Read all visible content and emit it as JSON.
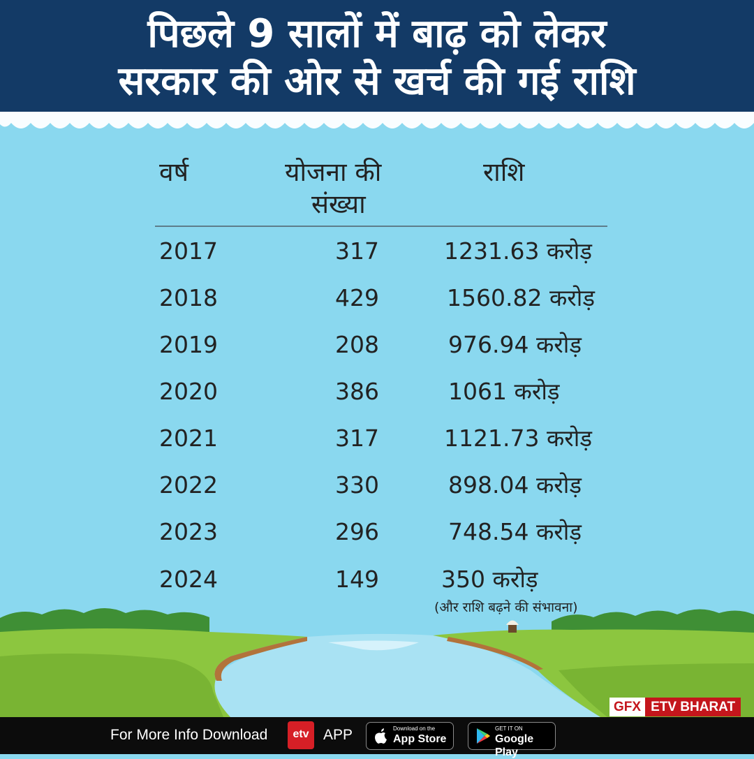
{
  "header": {
    "title_line1": "पिछले 9 सालों में बाढ़ को लेकर",
    "title_line2": "सरकार की ओर से खर्च की गई राशि"
  },
  "table": {
    "columns": [
      "वर्ष",
      "योजना की",
      "संख्या",
      "राशि"
    ],
    "rows": [
      {
        "year": "2017",
        "count": "317",
        "amount": "1231.63 करोड़"
      },
      {
        "year": "2018",
        "count": "429",
        "amount": "1560.82 करोड़"
      },
      {
        "year": "2019",
        "count": "208",
        "amount": "976.94 करोड़"
      },
      {
        "year": "2020",
        "count": "386",
        "amount": "1061 करोड़"
      },
      {
        "year": "2021",
        "count": "317",
        "amount": "1121.73 करोड़"
      },
      {
        "year": "2022",
        "count": "330",
        "amount": "898.04 करोड़"
      },
      {
        "year": "2023",
        "count": "296",
        "amount": "748.54 करोड़"
      },
      {
        "year": "2024",
        "count": "149",
        "amount": "350 करोड़"
      }
    ],
    "note": "(और राशि बढ़ने की संभावना)"
  },
  "badge": {
    "gfx": "GFX",
    "brand": "ETV BHARAT"
  },
  "footer": {
    "text": "For More Info Download",
    "logo_text": "etv",
    "app_label": "APP",
    "appstore_small": "Download on the",
    "appstore_big": "App Store",
    "googleplay_small": "GET IT ON",
    "googleplay_big": "Google Play"
  },
  "colors": {
    "header_bg": "#133a66",
    "water": "#8ad8ef",
    "grass": "#8cc63f",
    "river": "#a9e2f3",
    "footer_bg": "#0c0c0c",
    "brand_red": "#c4161c"
  },
  "icons": [
    "apple-icon",
    "google-play-icon",
    "etv-logo"
  ]
}
